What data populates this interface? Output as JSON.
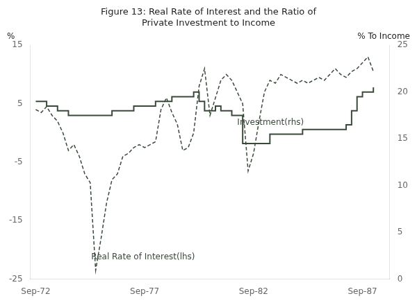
{
  "chart_data": {
    "type": "line",
    "title": "Figure 13: Real Rate of Interest and the Ratio of\nPrivate Investment to Income",
    "ylabel": "%",
    "y2label": "% To Income",
    "x": [
      1972.75,
      1973.0,
      1973.25,
      1973.5,
      1973.75,
      1974.0,
      1974.25,
      1974.5,
      1974.75,
      1975.0,
      1975.25,
      1975.5,
      1975.75,
      1976.0,
      1976.25,
      1976.5,
      1976.75,
      1977.0,
      1977.25,
      1977.5,
      1977.75,
      1978.0,
      1978.25,
      1978.5,
      1978.75,
      1979.0,
      1979.25,
      1979.5,
      1979.75,
      1980.0,
      1980.25,
      1980.5,
      1980.75,
      1981.0,
      1981.25,
      1981.5,
      1981.75,
      1982.0,
      1982.25,
      1982.5,
      1982.75,
      1983.0,
      1983.25,
      1983.5,
      1983.75,
      1984.0,
      1984.25,
      1984.5,
      1984.75,
      1985.0,
      1985.25,
      1985.5,
      1985.75,
      1986.0,
      1986.25,
      1986.5,
      1986.75,
      1987.0,
      1987.25,
      1987.5,
      1987.75,
      1988.0,
      1988.25
    ],
    "xlim": [
      1972.5,
      1989.0
    ],
    "xticks": [
      {
        "value": 1972.75,
        "label": "Sep-72"
      },
      {
        "value": 1977.75,
        "label": "Sep-77"
      },
      {
        "value": 1982.75,
        "label": "Sep-82"
      },
      {
        "value": 1987.75,
        "label": "Sep-87"
      }
    ],
    "ylim": [
      -25,
      15
    ],
    "yticks": [
      -25,
      -15,
      -5,
      5,
      15
    ],
    "y2lim": [
      0,
      25
    ],
    "y2ticks": [
      0,
      5,
      10,
      15,
      20,
      25
    ],
    "grid": false,
    "series": [
      {
        "color": "#3a4a3a",
        "line_style": "dashed",
        "values": [
          4.0,
          3.5,
          4.5,
          3.0,
          2.0,
          0.0,
          -3.0,
          -2.0,
          -4.0,
          -7.0,
          -8.5,
          -23.5,
          -18.0,
          -12.0,
          -8.0,
          -7.0,
          -4.0,
          -3.5,
          -2.5,
          -2.0,
          -2.5,
          -2.0,
          -1.5,
          4.0,
          6.0,
          3.5,
          1.5,
          -3.0,
          -2.5,
          0.0,
          8.0,
          11.0,
          3.0,
          6.0,
          9.0,
          10.0,
          9.0,
          7.0,
          5.0,
          -6.5,
          -3.5,
          2.0,
          7.0,
          9.0,
          8.5,
          10.0,
          9.5,
          9.0,
          8.5,
          9.0,
          8.5,
          9.0,
          9.5,
          9.0,
          10.0,
          11.0,
          10.0,
          9.5,
          10.5,
          11.0,
          12.0,
          13.0,
          10.5
        ]
      },
      {
        "type": "step",
        "axis": "y2",
        "color": "#3a4a3a",
        "line_style": "solid",
        "values": [
          19.0,
          19.0,
          18.5,
          18.5,
          18.0,
          18.0,
          17.5,
          17.5,
          17.5,
          17.5,
          17.5,
          17.5,
          17.5,
          17.5,
          18.0,
          18.0,
          18.0,
          18.0,
          18.5,
          18.5,
          18.5,
          18.5,
          19.0,
          19.0,
          19.0,
          19.5,
          19.5,
          19.5,
          19.5,
          20.0,
          19.0,
          18.0,
          18.0,
          18.5,
          18.0,
          18.0,
          17.5,
          17.5,
          14.5,
          14.5,
          14.5,
          14.5,
          14.5,
          15.5,
          15.5,
          15.5,
          15.5,
          15.5,
          15.5,
          16.0,
          16.0,
          16.0,
          16.0,
          16.0,
          16.0,
          16.0,
          16.0,
          16.5,
          18.0,
          19.5,
          20.0,
          20.0,
          20.5
        ]
      }
    ],
    "annotations": [
      {
        "text": "Investment(rhs)",
        "x": 1982.0,
        "y": 2.5
      },
      {
        "text": "Real Rate of Interest(lhs)",
        "x": 1975.3,
        "y": -20.5
      }
    ]
  }
}
